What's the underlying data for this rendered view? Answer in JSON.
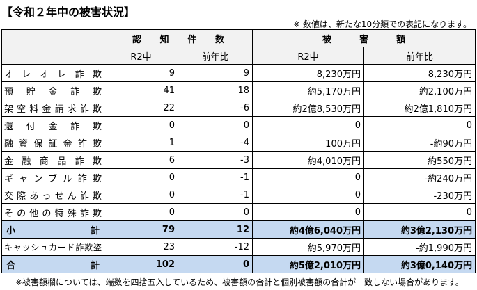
{
  "header": {
    "title": "【令和２年中の被害状況】",
    "note": "※ 数値は、新たな10分類での表記になります。"
  },
  "table": {
    "group_headers": [
      "認知件数",
      "被害額"
    ],
    "sub_headers": [
      "R2中",
      "前年比",
      "R2中",
      "前年比"
    ],
    "rows": [
      [
        "オレオレ詐欺",
        "9",
        "9",
        "8,230万円",
        "8,230万円"
      ],
      [
        "預貯金詐欺",
        "41",
        "18",
        "約5,170万円",
        "約2,100万円"
      ],
      [
        "架空料金請求詐欺",
        "22",
        "-6",
        "約2億8,530万円",
        "約2億1,810万円"
      ],
      [
        "還付金詐欺",
        "0",
        "0",
        "0",
        "0"
      ],
      [
        "融資保証金詐欺",
        "1",
        "-4",
        "100万円",
        "-約90万円"
      ],
      [
        "金融商品詐欺",
        "6",
        "-3",
        "約4,010万円",
        "約550万円"
      ],
      [
        "ギャンブル詐欺",
        "0",
        "-1",
        "0",
        "-約240万円"
      ],
      [
        "交際あっせん詐欺",
        "0",
        "-1",
        "0",
        "-230万円"
      ],
      [
        "その他の特殊詐欺",
        "0",
        "0",
        "0",
        "0"
      ],
      [
        "小計",
        "79",
        "12",
        "約4億6,040万円",
        "約3億2,130万円"
      ],
      [
        "キャッシュカード詐欺盗",
        "23",
        "-12",
        "約5,970万円",
        "-約1,990万円"
      ],
      [
        "合計",
        "102",
        "0",
        "約5億2,010万円",
        "約3億0,140万円"
      ]
    ]
  },
  "footer": {
    "note": "※被害額欄については、端数を四捨五入しているため、被害額の合計と個別被害額の合計が一致しない場合があります。"
  }
}
